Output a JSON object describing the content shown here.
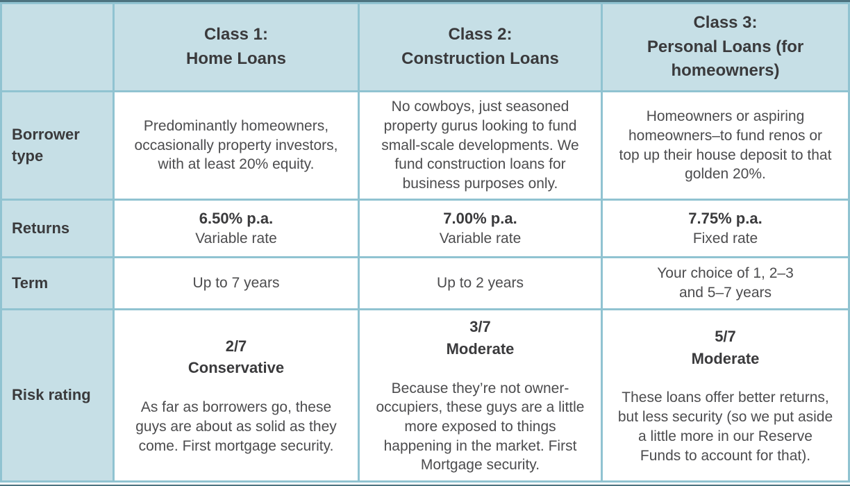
{
  "colors": {
    "cell_bg": "#c6dfe6",
    "border": "#90c3d1",
    "frame": "#4d7380",
    "heading_text": "#3a3a3c",
    "body_text": "#4c4c4e"
  },
  "header": {
    "corner": "",
    "columns": [
      {
        "title": "Class 1:\nHome Loans"
      },
      {
        "title": "Class 2:\nConstruction Loans"
      },
      {
        "title": "Class 3:\nPersonal Loans (for\nhomeowners)"
      }
    ]
  },
  "rows": [
    {
      "label": "Borrower type",
      "cells": [
        {
          "text": "Predominantly homeowners, occasionally property investors, with at least 20% equity."
        },
        {
          "text": "No cowboys, just seasoned property gurus looking to fund small-scale developments. We fund construction loans for business purposes only."
        },
        {
          "text": "Homeowners or aspiring homeowners–to fund renos or top up their house deposit to that golden 20%."
        }
      ]
    },
    {
      "label": "Returns",
      "cells": [
        {
          "rate": "6.50% p.a.",
          "type": "Variable rate"
        },
        {
          "rate": "7.00% p.a.",
          "type": "Variable rate"
        },
        {
          "rate": "7.75% p.a.",
          "type": "Fixed rate"
        }
      ]
    },
    {
      "label": "Term",
      "cells": [
        {
          "text": "Up to 7 years"
        },
        {
          "text": "Up to 2 years"
        },
        {
          "text": "Your choice of 1, 2–3\nand 5–7 years"
        }
      ]
    },
    {
      "label": "Risk rating",
      "cells": [
        {
          "head": "2/7\nConservative",
          "text": "As far as borrowers go, these guys are about as solid as they come. First mortgage security."
        },
        {
          "head": "3/7\nModerate",
          "text": "Because they’re not owner-occupiers, these guys are a little more exposed to things happening in the market. First Mortgage security."
        },
        {
          "head": "5/7\nModerate",
          "text": "These loans offer better returns, but less security (so we put aside a little more in our Reserve Funds to account for that)."
        }
      ]
    }
  ]
}
